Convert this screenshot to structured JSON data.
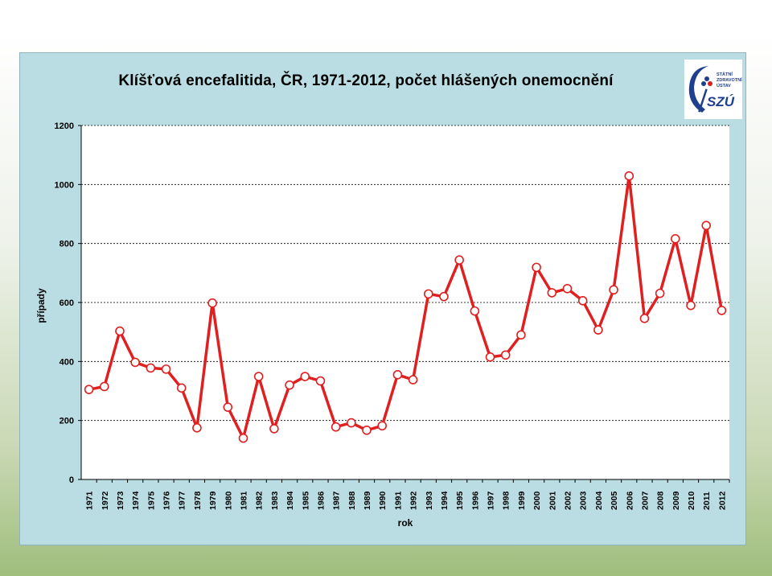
{
  "page": {
    "frame_color": "#b9dde3",
    "plot_background": "#ffffff"
  },
  "logo": {
    "icon": "szu-logo-icon",
    "text_lines": [
      "STÁTNÍ",
      "ZDRAVOTNÍ",
      "ÚSTAV"
    ],
    "mark": "SZÚ",
    "brand_color": "#1f3f8f",
    "accent_color": "#d92020"
  },
  "chart_data": {
    "type": "line",
    "title": "Klíšťová encefalitida, ČR, 1971-2012, počet hlášených onemocnění",
    "xlabel": "rok",
    "ylabel": "případy",
    "ylim": [
      0,
      1200
    ],
    "yticks": [
      0,
      200,
      400,
      600,
      800,
      1000,
      1200
    ],
    "grid": "horizontal-dotted",
    "legend": "none",
    "line_color": "#e02020",
    "marker_fill": "#ffffff",
    "x": [
      "1971",
      "1972",
      "1973",
      "1974",
      "1975",
      "1976",
      "1977",
      "1978",
      "1979",
      "1980",
      "1981",
      "1982",
      "1983",
      "1984",
      "1985",
      "1986",
      "1987",
      "1988",
      "1989",
      "1990",
      "1991",
      "1992",
      "1993",
      "1994",
      "1995",
      "1996",
      "1997",
      "1998",
      "1999",
      "2000",
      "2001",
      "2002",
      "2003",
      "2004",
      "2005",
      "2006",
      "2007",
      "2008",
      "2009",
      "2010",
      "2011",
      "2012"
    ],
    "series": [
      {
        "values": [
          305,
          315,
          503,
          397,
          378,
          374,
          310,
          175,
          598,
          245,
          140,
          349,
          172,
          320,
          349,
          334,
          178,
          192,
          167,
          182,
          355,
          338,
          629,
          620,
          744,
          571,
          415,
          422,
          490,
          719,
          633,
          647,
          606,
          507,
          643,
          1029,
          546,
          631,
          816,
          590,
          861,
          573
        ]
      }
    ]
  }
}
